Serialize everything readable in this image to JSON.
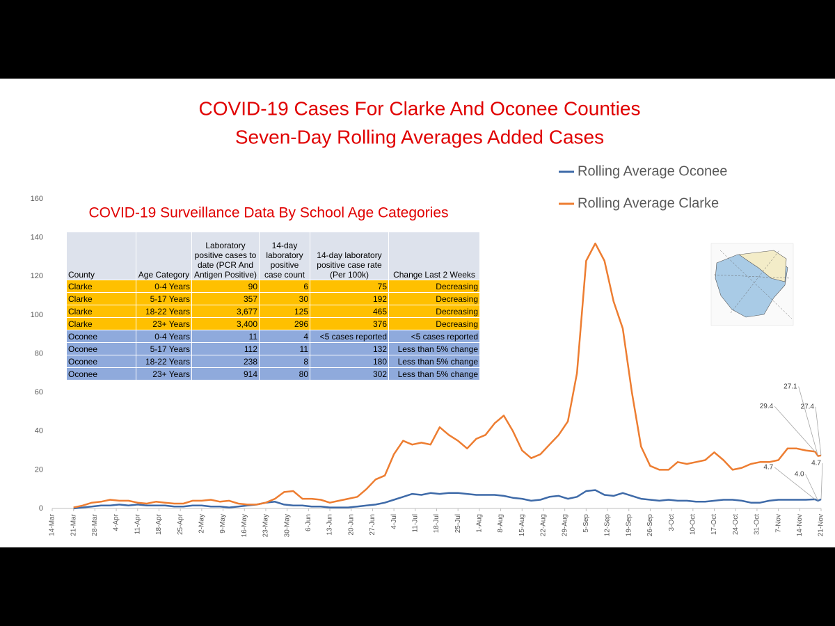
{
  "chart_data": {
    "type": "line",
    "title": "COVID-19 Cases For Clarke And Oconee Counties",
    "subtitle": "Seven-Day Rolling Averages Added Cases",
    "x": [
      "21-Mar",
      "24-Mar",
      "27-Mar",
      "30-Mar",
      "2-Apr",
      "5-Apr",
      "8-Apr",
      "11-Apr",
      "14-Apr",
      "17-Apr",
      "20-Apr",
      "23-Apr",
      "26-Apr",
      "29-Apr",
      "2-May",
      "5-May",
      "8-May",
      "11-May",
      "14-May",
      "17-May",
      "20-May",
      "23-May",
      "26-May",
      "29-May",
      "1-Jun",
      "4-Jun",
      "7-Jun",
      "10-Jun",
      "13-Jun",
      "16-Jun",
      "19-Jun",
      "22-Jun",
      "25-Jun",
      "28-Jun",
      "1-Jul",
      "4-Jul",
      "7-Jul",
      "10-Jul",
      "13-Jul",
      "16-Jul",
      "19-Jul",
      "22-Jul",
      "25-Jul",
      "28-Jul",
      "31-Jul",
      "3-Aug",
      "6-Aug",
      "9-Aug",
      "12-Aug",
      "15-Aug",
      "18-Aug",
      "21-Aug",
      "24-Aug",
      "27-Aug",
      "30-Aug",
      "2-Sep",
      "5-Sep",
      "8-Sep",
      "11-Sep",
      "14-Sep",
      "17-Sep",
      "20-Sep",
      "23-Sep",
      "26-Sep",
      "29-Sep",
      "2-Oct",
      "5-Oct",
      "8-Oct",
      "11-Oct",
      "14-Oct",
      "17-Oct",
      "20-Oct",
      "23-Oct",
      "26-Oct",
      "29-Oct",
      "1-Nov",
      "4-Nov",
      "7-Nov",
      "10-Nov",
      "13-Nov",
      "16-Nov",
      "19-Nov",
      "20-Nov",
      "21-Nov"
    ],
    "series": [
      {
        "name": "Rolling Average Oconee",
        "color": "#3e6aa8",
        "values": [
          0,
          0.5,
          1,
          1.5,
          1.5,
          2,
          1.5,
          2,
          1.5,
          1.5,
          1.5,
          1,
          1,
          1.5,
          1.5,
          1,
          1,
          0.5,
          1,
          1.5,
          2,
          3,
          3.5,
          2,
          1.5,
          1.5,
          1,
          1,
          0.5,
          0.5,
          0.5,
          1,
          1.5,
          2,
          3,
          4.5,
          6,
          7.5,
          7,
          8,
          7.5,
          8,
          8,
          7.5,
          7,
          7,
          7,
          6.5,
          5.5,
          5,
          4,
          4.5,
          6,
          6.5,
          5,
          6,
          9,
          9.5,
          7,
          6.5,
          8,
          6.5,
          5,
          4.5,
          4,
          4.5,
          4,
          4,
          3.5,
          3.5,
          4,
          4.5,
          4.5,
          4,
          3,
          3,
          4,
          4.5,
          4.5,
          4.5,
          4.5,
          4.7,
          4.0,
          4.7
        ],
        "value_labels": [
          null,
          null,
          null,
          null,
          null,
          null,
          null,
          null,
          null,
          null,
          null,
          null,
          null,
          null,
          null,
          null,
          null,
          null,
          null,
          null,
          null,
          null,
          null,
          null,
          null,
          null,
          null,
          null,
          null,
          null,
          null,
          null,
          null,
          null,
          null,
          null,
          null,
          null,
          null,
          null,
          null,
          null,
          null,
          null,
          null,
          null,
          null,
          null,
          null,
          null,
          null,
          null,
          null,
          null,
          null,
          null,
          null,
          null,
          null,
          null,
          null,
          null,
          null,
          null,
          null,
          null,
          null,
          null,
          null,
          null,
          null,
          null,
          null,
          null,
          null,
          null,
          null,
          null,
          null,
          null,
          null,
          "4.7",
          "4.0",
          "4.7"
        ]
      },
      {
        "name": "Rolling Average Clarke",
        "color": "#ed7d31",
        "values": [
          0.5,
          1.5,
          3,
          3.5,
          4.5,
          4,
          4,
          3,
          2.5,
          3.5,
          3,
          2.5,
          2.5,
          4,
          4,
          4.5,
          3.5,
          4,
          2.5,
          2,
          2,
          3,
          5,
          8.5,
          9,
          5,
          5,
          4.5,
          3,
          4,
          5,
          6,
          10,
          15,
          17,
          28,
          35,
          33,
          34,
          33,
          42,
          38,
          35,
          31,
          36,
          38,
          44,
          48,
          40,
          30,
          26,
          28,
          33,
          38,
          45,
          70,
          128,
          137,
          128,
          107,
          93,
          60,
          32,
          22,
          20,
          20,
          24,
          23,
          24,
          25,
          29,
          25,
          20,
          21,
          23,
          24,
          24,
          25,
          31,
          31,
          30,
          29.4,
          27.1,
          27.4
        ],
        "value_labels": [
          null,
          null,
          null,
          null,
          null,
          null,
          null,
          null,
          null,
          null,
          null,
          null,
          null,
          null,
          null,
          null,
          null,
          null,
          null,
          null,
          null,
          null,
          null,
          null,
          null,
          null,
          null,
          null,
          null,
          null,
          null,
          null,
          null,
          null,
          null,
          null,
          null,
          null,
          null,
          null,
          null,
          null,
          null,
          null,
          null,
          null,
          null,
          null,
          null,
          null,
          null,
          null,
          null,
          null,
          null,
          null,
          null,
          null,
          null,
          null,
          null,
          null,
          null,
          null,
          null,
          null,
          null,
          null,
          null,
          null,
          null,
          null,
          null,
          null,
          null,
          null,
          null,
          null,
          null,
          null,
          null,
          "29.4",
          "27.1",
          "27.4"
        ]
      }
    ],
    "xlim": [
      "14-Mar",
      "21-Nov"
    ],
    "xticks": [
      "14-Mar",
      "21-Mar",
      "28-Mar",
      "4-Apr",
      "11-Apr",
      "18-Apr",
      "25-Apr",
      "2-May",
      "9-May",
      "16-May",
      "23-May",
      "30-May",
      "6-Jun",
      "13-Jun",
      "20-Jun",
      "27-Jun",
      "4-Jul",
      "11-Jul",
      "18-Jul",
      "25-Jul",
      "1-Aug",
      "8-Aug",
      "15-Aug",
      "22-Aug",
      "29-Aug",
      "5-Sep",
      "12-Sep",
      "19-Sep",
      "26-Sep",
      "3-Oct",
      "10-Oct",
      "17-Oct",
      "24-Oct",
      "31-Oct",
      "7-Nov",
      "14-Nov",
      "21-Nov"
    ],
    "ylim": [
      0,
      160
    ],
    "yticks": [
      0,
      20,
      40,
      60,
      80,
      100,
      120,
      140,
      160
    ],
    "grid": false,
    "legend": "top-right",
    "table": {
      "title": "COVID-19 Surveillance Data By School Age Categories",
      "columns": [
        "County",
        "Age Category",
        "Laboratory positive cases to date (PCR And Antigen Positive)",
        "14-day laboratory positive case count",
        "14-day laboratory positive case rate (Per 100k)",
        "Change Last 2 Weeks"
      ],
      "row_colors": [
        "#ffc000",
        "#ffc000",
        "#ffc000",
        "#ffc000",
        "#8faadc",
        "#8faadc",
        "#8faadc",
        "#8faadc"
      ],
      "rows": [
        [
          "Clarke",
          "0-4 Years",
          "90",
          "6",
          "75",
          "Decreasing"
        ],
        [
          "Clarke",
          "5-17 Years",
          "357",
          "30",
          "192",
          "Decreasing"
        ],
        [
          "Clarke",
          "18-22 Years",
          "3,677",
          "125",
          "465",
          "Decreasing"
        ],
        [
          "Clarke",
          "23+ Years",
          "3,400",
          "296",
          "376",
          "Decreasing"
        ],
        [
          "Oconee",
          "0-4 Years",
          "11",
          "4",
          "<5 cases reported",
          "<5 cases reported"
        ],
        [
          "Oconee",
          "5-17 Years",
          "112",
          "11",
          "132",
          "Less than 5% change"
        ],
        [
          "Oconee",
          "18-22 Years",
          "238",
          "8",
          "180",
          "Less than 5% change"
        ],
        [
          "Oconee",
          "23+ Years",
          "914",
          "80",
          "302",
          "Less than 5% change"
        ]
      ]
    }
  }
}
